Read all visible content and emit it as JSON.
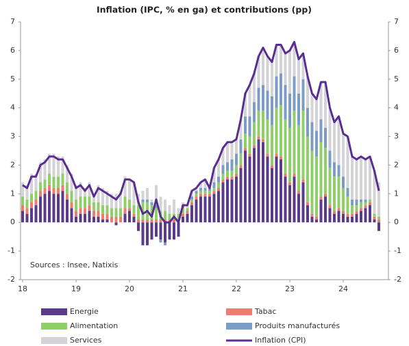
{
  "chart_data": {
    "type": "bar",
    "stacked": true,
    "title": "Inflation (IPC, % en ga) et contributions (pp)",
    "annotation": "Sources : Insee, Natixis",
    "categories": [
      "18",
      null,
      null,
      null,
      null,
      null,
      null,
      null,
      null,
      null,
      null,
      null,
      "19",
      null,
      null,
      null,
      null,
      null,
      null,
      null,
      null,
      null,
      null,
      null,
      "20",
      null,
      null,
      null,
      null,
      null,
      null,
      null,
      null,
      null,
      null,
      null,
      "21",
      null,
      null,
      null,
      null,
      null,
      null,
      null,
      null,
      null,
      null,
      null,
      "22",
      null,
      null,
      null,
      null,
      null,
      null,
      null,
      null,
      null,
      null,
      null,
      "23",
      null,
      null,
      null,
      null,
      null,
      null,
      null,
      null,
      null,
      null,
      null,
      "24",
      null,
      null,
      null,
      null,
      null,
      null,
      null,
      null
    ],
    "ylim": [
      -2,
      7
    ],
    "yticks": [
      -2,
      -1,
      0,
      1,
      2,
      3,
      4,
      5,
      6,
      7
    ],
    "right_axis": true,
    "grid": false,
    "legend": "bottom",
    "series": [
      {
        "name": "Energie",
        "type": "bar",
        "color": "#5b3a8c",
        "values": [
          0.4,
          0.3,
          0.5,
          0.6,
          0.9,
          1.0,
          1.1,
          1.0,
          1.0,
          1.1,
          0.8,
          0.5,
          0.2,
          0.3,
          0.3,
          0.4,
          0.2,
          0.2,
          0.1,
          0.1,
          0.0,
          -0.1,
          0.0,
          0.3,
          0.4,
          0.2,
          -0.3,
          -0.8,
          -0.8,
          -0.6,
          -0.5,
          -0.6,
          -0.7,
          -0.6,
          -0.6,
          -0.5,
          0.2,
          0.3,
          0.6,
          0.8,
          0.9,
          0.9,
          0.9,
          1.0,
          1.1,
          1.4,
          1.5,
          1.5,
          1.6,
          1.9,
          2.5,
          2.3,
          2.6,
          2.9,
          2.8,
          2.3,
          1.9,
          2.3,
          2.2,
          1.6,
          1.3,
          1.6,
          1.0,
          1.4,
          0.6,
          0.2,
          0.1,
          0.8,
          0.9,
          0.5,
          0.3,
          0.4,
          0.3,
          0.2,
          0.2,
          0.3,
          0.4,
          0.5,
          0.6,
          0.1,
          -0.3
        ]
      },
      {
        "name": "Tabac",
        "type": "bar",
        "color": "#ec7d6e",
        "values": [
          0.2,
          0.2,
          0.2,
          0.2,
          0.2,
          0.2,
          0.2,
          0.2,
          0.2,
          0.2,
          0.2,
          0.2,
          0.2,
          0.2,
          0.2,
          0.2,
          0.2,
          0.2,
          0.2,
          0.2,
          0.2,
          0.2,
          0.2,
          0.2,
          0.1,
          0.1,
          0.1,
          0.1,
          0.1,
          0.1,
          0.1,
          0.1,
          0.1,
          0.1,
          0.1,
          0.1,
          0.1,
          0.1,
          0.1,
          0.1,
          0.1,
          0.1,
          0.1,
          0.1,
          0.1,
          0.1,
          0.1,
          0.1,
          0.1,
          0.1,
          0.1,
          0.1,
          0.1,
          0.1,
          0.1,
          0.1,
          0.1,
          0.1,
          0.1,
          0.1,
          0.1,
          0.1,
          0.1,
          0.1,
          0.1,
          0.1,
          0.1,
          0.1,
          0.1,
          0.1,
          0.1,
          0.1,
          0.1,
          0.1,
          0.1,
          0.1,
          0.1,
          0.1,
          0.1,
          0.1,
          0.1
        ]
      },
      {
        "name": "Alimentation",
        "type": "bar",
        "color": "#8fcf6a",
        "values": [
          0.3,
          0.3,
          0.3,
          0.3,
          0.3,
          0.3,
          0.4,
          0.4,
          0.4,
          0.4,
          0.4,
          0.4,
          0.4,
          0.4,
          0.4,
          0.3,
          0.3,
          0.3,
          0.3,
          0.3,
          0.3,
          0.3,
          0.3,
          0.4,
          0.3,
          0.3,
          0.5,
          0.6,
          0.6,
          0.5,
          0.4,
          0.3,
          0.3,
          0.2,
          0.2,
          0.2,
          0.2,
          0.1,
          0.1,
          0.1,
          0.1,
          0.1,
          0.1,
          0.1,
          0.2,
          0.2,
          0.2,
          0.2,
          0.3,
          0.4,
          0.5,
          0.6,
          0.8,
          0.9,
          1.0,
          1.2,
          1.4,
          1.6,
          1.8,
          1.9,
          1.9,
          2.2,
          2.3,
          2.4,
          2.3,
          2.2,
          2.1,
          1.9,
          1.6,
          1.3,
          1.2,
          1.1,
          0.8,
          0.6,
          0.3,
          0.2,
          0.2,
          0.1,
          0.1,
          0.1,
          0.1
        ]
      },
      {
        "name": "Produits manufacturés",
        "type": "bar",
        "color": "#7a9cc6",
        "values": [
          0.0,
          0.0,
          0.0,
          0.0,
          0.0,
          0.0,
          0.0,
          0.0,
          0.0,
          0.0,
          0.0,
          0.0,
          0.0,
          0.0,
          0.0,
          0.0,
          0.0,
          0.0,
          0.0,
          0.0,
          0.0,
          0.0,
          0.0,
          0.0,
          0.0,
          0.0,
          0.0,
          0.1,
          0.1,
          0.1,
          0.1,
          -0.1,
          -0.1,
          0.0,
          0.0,
          0.0,
          0.1,
          0.0,
          0.1,
          0.1,
          0.1,
          0.1,
          0.1,
          0.2,
          0.2,
          0.3,
          0.3,
          0.4,
          0.4,
          0.5,
          0.6,
          0.7,
          0.7,
          0.8,
          0.9,
          1.0,
          1.0,
          1.1,
          1.1,
          1.2,
          1.2,
          1.2,
          1.1,
          1.1,
          1.0,
          1.0,
          0.9,
          0.8,
          0.7,
          0.6,
          0.5,
          0.4,
          0.4,
          0.3,
          0.2,
          0.2,
          0.1,
          0.1,
          0.0,
          0.0,
          0.0
        ]
      },
      {
        "name": "Services",
        "type": "bar",
        "color": "#d3d3d8",
        "values": [
          0.5,
          0.5,
          0.7,
          0.6,
          0.7,
          0.7,
          0.7,
          0.8,
          0.7,
          0.6,
          0.6,
          0.6,
          0.5,
          0.5,
          0.3,
          0.5,
          0.3,
          0.6,
          0.6,
          0.5,
          0.5,
          0.5,
          0.6,
          0.7,
          0.7,
          0.8,
          0.4,
          0.3,
          0.4,
          0.1,
          0.7,
          0.5,
          0.4,
          0.3,
          0.5,
          0.2,
          0.1,
          0.1,
          0.2,
          0.1,
          0.2,
          0.3,
          0.0,
          0.5,
          0.6,
          0.6,
          0.7,
          0.6,
          0.5,
          0.7,
          0.8,
          1.1,
          1.0,
          1.1,
          1.3,
          1.2,
          1.2,
          1.1,
          1.0,
          1.1,
          1.5,
          1.2,
          1.2,
          0.9,
          1.1,
          1.0,
          1.1,
          1.3,
          1.6,
          1.5,
          1.4,
          1.7,
          1.5,
          1.8,
          1.5,
          1.4,
          1.5,
          1.4,
          1.5,
          1.5,
          1.2
        ]
      },
      {
        "name": "Inflation (CPI)",
        "type": "line",
        "color": "#5a2d91",
        "values": [
          1.3,
          1.2,
          1.6,
          1.6,
          2.0,
          2.1,
          2.3,
          2.3,
          2.2,
          2.2,
          1.9,
          1.6,
          1.2,
          1.3,
          1.1,
          1.3,
          0.9,
          1.2,
          1.1,
          1.0,
          0.9,
          0.8,
          1.0,
          1.5,
          1.5,
          1.4,
          0.7,
          0.3,
          0.4,
          0.2,
          0.8,
          0.2,
          0.0,
          0.0,
          0.2,
          0.0,
          0.6,
          0.6,
          1.1,
          1.2,
          1.4,
          1.5,
          1.2,
          1.9,
          2.2,
          2.6,
          2.8,
          2.8,
          2.9,
          3.6,
          4.5,
          4.8,
          5.2,
          5.8,
          6.1,
          5.8,
          5.6,
          6.2,
          6.2,
          5.9,
          6.0,
          6.3,
          5.7,
          5.9,
          5.1,
          4.5,
          4.3,
          4.9,
          4.9,
          4.0,
          3.5,
          3.7,
          3.1,
          3.0,
          2.3,
          2.2,
          2.3,
          2.2,
          2.3,
          1.8,
          1.1
        ]
      }
    ]
  }
}
